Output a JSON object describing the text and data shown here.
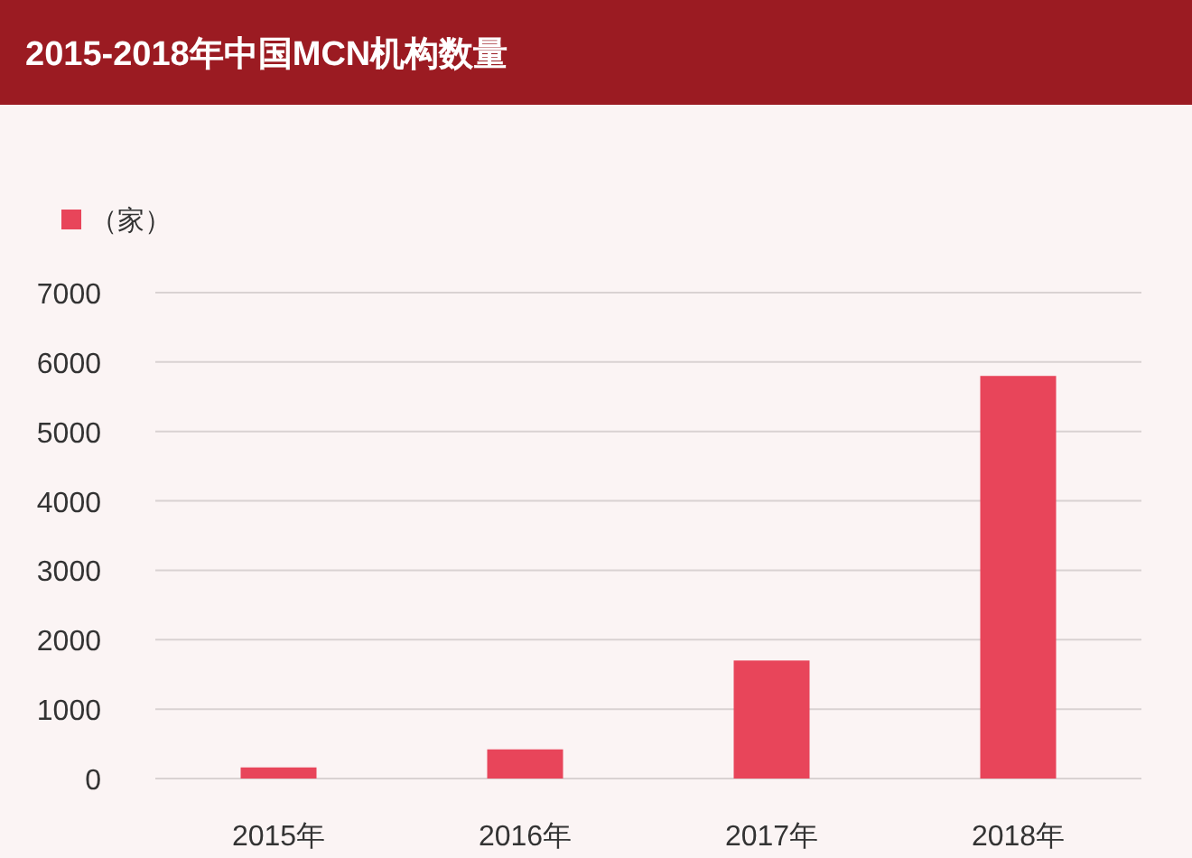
{
  "chart_data": {
    "type": "bar",
    "title": "2015-2018年中国MCN机构数量",
    "categories": [
      "2015年",
      "2016年",
      "2017年",
      "2018年"
    ],
    "series": [
      {
        "name": "（家）",
        "color": "#e8455a",
        "values": [
          160,
          420,
          1700,
          5800
        ]
      }
    ],
    "ylim": [
      0,
      7000
    ],
    "yticks": [
      0,
      1000,
      2000,
      3000,
      4000,
      5000,
      6000,
      7000
    ],
    "grid": "y",
    "legend": "top left"
  }
}
